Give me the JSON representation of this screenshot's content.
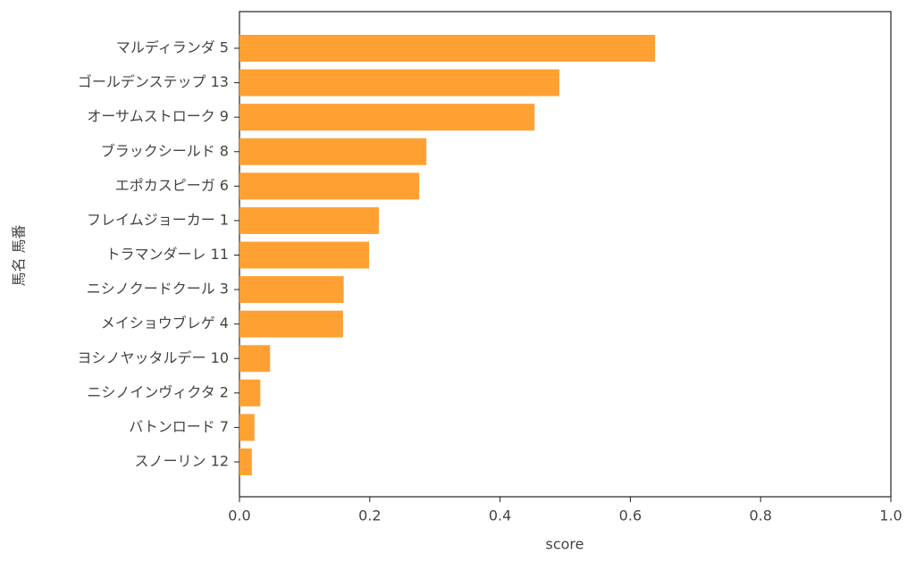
{
  "chart_data": {
    "type": "barh",
    "xlabel": "score",
    "ylabel": "馬名 馬番",
    "categories": [
      "マルディランダ 5",
      "ゴールデンステップ 13",
      "オーサムストローク 9",
      "ブラックシールド 8",
      "エポカスピーガ 6",
      "フレイムジョーカー 1",
      "トラマンダーレ 11",
      "ニシノクードクール 3",
      "メイショウブレゲ 4",
      "ヨシノヤッタルデー 10",
      "ニシノインヴィクタ 2",
      "バトンロード 7",
      "スノーリン 12"
    ],
    "values": [
      0.638,
      0.491,
      0.453,
      0.287,
      0.276,
      0.214,
      0.199,
      0.16,
      0.159,
      0.047,
      0.032,
      0.023,
      0.019
    ],
    "color": "#ffa033",
    "xlim": [
      0,
      1
    ],
    "xticks": [
      {
        "value": 0,
        "label": "0.0"
      },
      0.2,
      0.4,
      0.6,
      0.8,
      {
        "value": 1,
        "label": "1.0"
      }
    ]
  }
}
